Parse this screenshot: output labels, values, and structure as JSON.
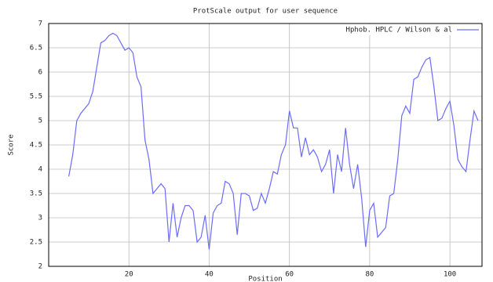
{
  "chart_data": {
    "type": "line",
    "title": "ProtScale output for user sequence",
    "x_label": "Position",
    "y_label": "Score",
    "x": [
      5,
      6,
      7,
      8,
      9,
      10,
      11,
      12,
      13,
      14,
      15,
      16,
      17,
      18,
      19,
      20,
      21,
      22,
      23,
      24,
      25,
      26,
      27,
      28,
      29,
      30,
      31,
      32,
      33,
      34,
      35,
      36,
      37,
      38,
      39,
      40,
      41,
      42,
      43,
      44,
      45,
      46,
      47,
      48,
      49,
      50,
      51,
      52,
      53,
      54,
      55,
      56,
      57,
      58,
      59,
      60,
      61,
      62,
      63,
      64,
      65,
      66,
      67,
      68,
      69,
      70,
      71,
      72,
      73,
      74,
      75,
      76,
      77,
      78,
      79,
      80,
      81,
      82,
      83,
      84,
      85,
      86,
      87,
      88,
      89,
      90,
      91,
      92,
      93,
      94,
      95,
      96,
      97,
      98,
      99,
      100,
      101,
      102,
      103,
      104,
      105,
      106,
      107
    ],
    "series": [
      {
        "name": "Hphob. HPLC / Wilson & al",
        "color": "#6b6bff",
        "values": [
          3.85,
          4.3,
          5.0,
          5.15,
          5.25,
          5.35,
          5.6,
          6.1,
          6.6,
          6.65,
          6.75,
          6.8,
          6.75,
          6.6,
          6.45,
          6.5,
          6.4,
          5.9,
          5.7,
          4.6,
          4.2,
          3.5,
          3.6,
          3.7,
          3.6,
          2.5,
          3.3,
          2.6,
          3.0,
          3.25,
          3.25,
          3.15,
          2.5,
          2.6,
          3.05,
          2.35,
          3.1,
          3.25,
          3.3,
          3.75,
          3.7,
          3.5,
          2.65,
          3.5,
          3.5,
          3.45,
          3.15,
          3.2,
          3.5,
          3.3,
          3.6,
          3.95,
          3.9,
          4.3,
          4.5,
          5.2,
          4.85,
          4.85,
          4.25,
          4.65,
          4.3,
          4.4,
          4.25,
          3.95,
          4.1,
          4.4,
          3.5,
          4.3,
          3.95,
          4.85,
          4.1,
          3.6,
          4.1,
          3.4,
          2.4,
          3.15,
          3.3,
          2.6,
          2.7,
          2.8,
          3.45,
          3.5,
          4.2,
          5.1,
          5.3,
          5.15,
          5.85,
          5.9,
          6.1,
          6.25,
          6.3,
          5.7,
          5.0,
          5.05,
          5.25,
          5.4,
          4.9,
          4.2,
          4.05,
          3.95,
          4.6,
          5.2,
          5.0
        ]
      }
    ],
    "xlim": [
      0,
      108
    ],
    "xticks": [
      20,
      40,
      60,
      80,
      100
    ],
    "ylim": [
      2,
      7
    ],
    "yticks": [
      2,
      2.5,
      3,
      3.5,
      4,
      4.5,
      5,
      5.5,
      6,
      6.5,
      7
    ],
    "grid": true
  }
}
